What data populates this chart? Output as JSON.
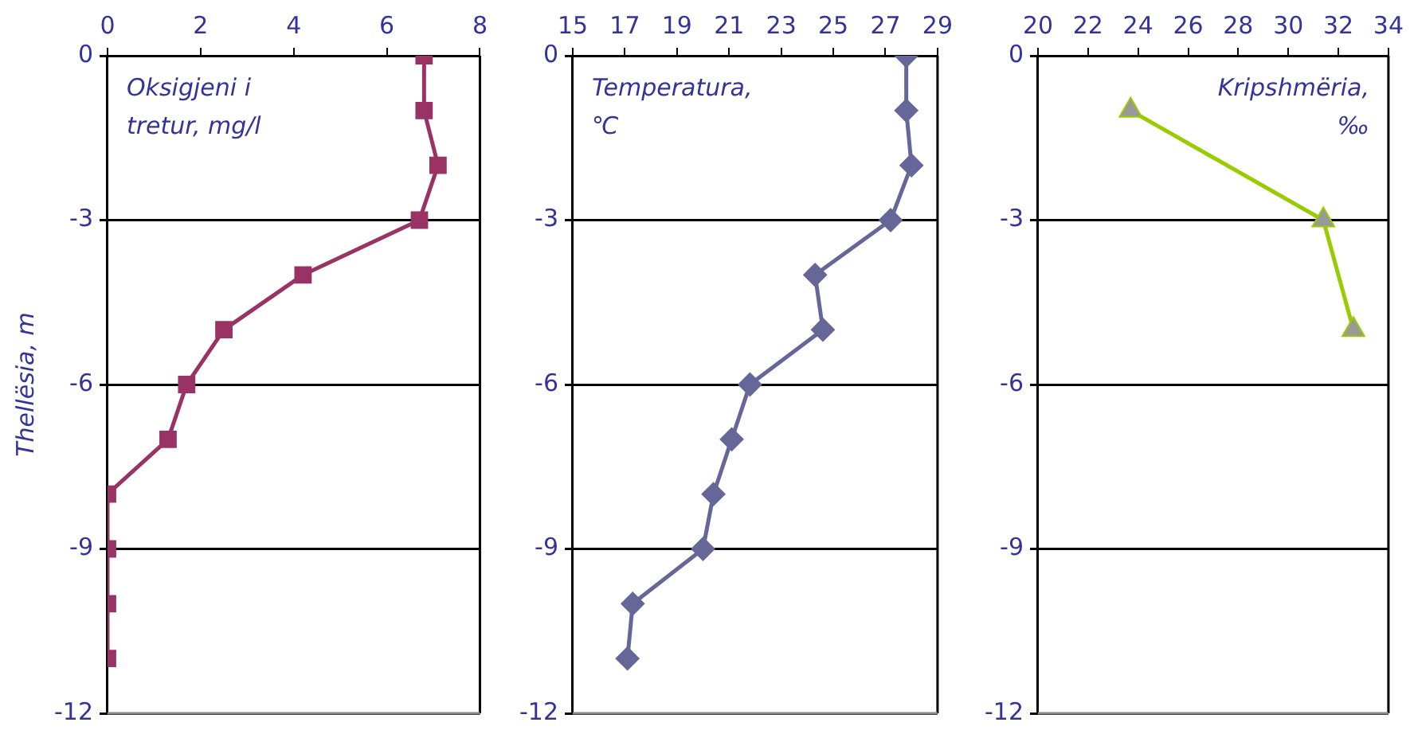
{
  "chart_data": [
    {
      "type": "line",
      "ylabel": "Thellësia, m",
      "annotations": [
        "Oksigjeni i tretur, mg/l"
      ],
      "xlim": [
        0,
        8
      ],
      "xticks": [
        0,
        2,
        4,
        6,
        8
      ],
      "ylim": [
        -12,
        0
      ],
      "yticks": [
        -12,
        -9,
        -6,
        -3,
        0
      ],
      "grid": "y",
      "marker": "square",
      "series": [
        {
          "color": "#993366",
          "x": [
            6.8,
            6.8,
            7.1,
            6.7,
            4.2,
            2.5,
            1.7,
            1.3,
            0,
            0,
            0,
            0
          ],
          "values": [
            0,
            -1,
            -2,
            -3,
            -4,
            -5,
            -6,
            -7,
            -8,
            -9,
            -10,
            -11
          ]
        }
      ]
    },
    {
      "type": "line",
      "annotations": [
        "Temperatura, ℃"
      ],
      "xlim": [
        15,
        29
      ],
      "xticks": [
        15,
        17,
        19,
        21,
        23,
        25,
        27,
        29
      ],
      "ylim": [
        -12,
        0
      ],
      "yticks": [
        -12,
        -9,
        -6,
        -3,
        0
      ],
      "grid": "y",
      "marker": "diamond",
      "series": [
        {
          "color": "#666699",
          "x": [
            27.8,
            27.8,
            28.0,
            27.2,
            24.3,
            24.6,
            21.8,
            21.1,
            20.4,
            20.0,
            17.3,
            17.1
          ],
          "values": [
            0,
            -1,
            -2,
            -3,
            -4,
            -5,
            -6,
            -7,
            -8,
            -9,
            -10,
            -11
          ]
        }
      ]
    },
    {
      "type": "line",
      "annotations": [
        "Kripshmëria, ‰"
      ],
      "xlim": [
        20,
        34
      ],
      "xticks": [
        20,
        22,
        24,
        26,
        28,
        30,
        32,
        34
      ],
      "ylim": [
        -12,
        0
      ],
      "yticks": [
        -12,
        -9,
        -6,
        -3,
        0
      ],
      "grid": "y",
      "marker": "triangle",
      "series": [
        {
          "color": "#99cc00",
          "colors": [
            "#999999",
            "#999999",
            "#999999"
          ],
          "x": [
            23.7,
            31.4,
            32.6
          ],
          "values": [
            -1,
            -3,
            -5
          ]
        }
      ]
    }
  ]
}
